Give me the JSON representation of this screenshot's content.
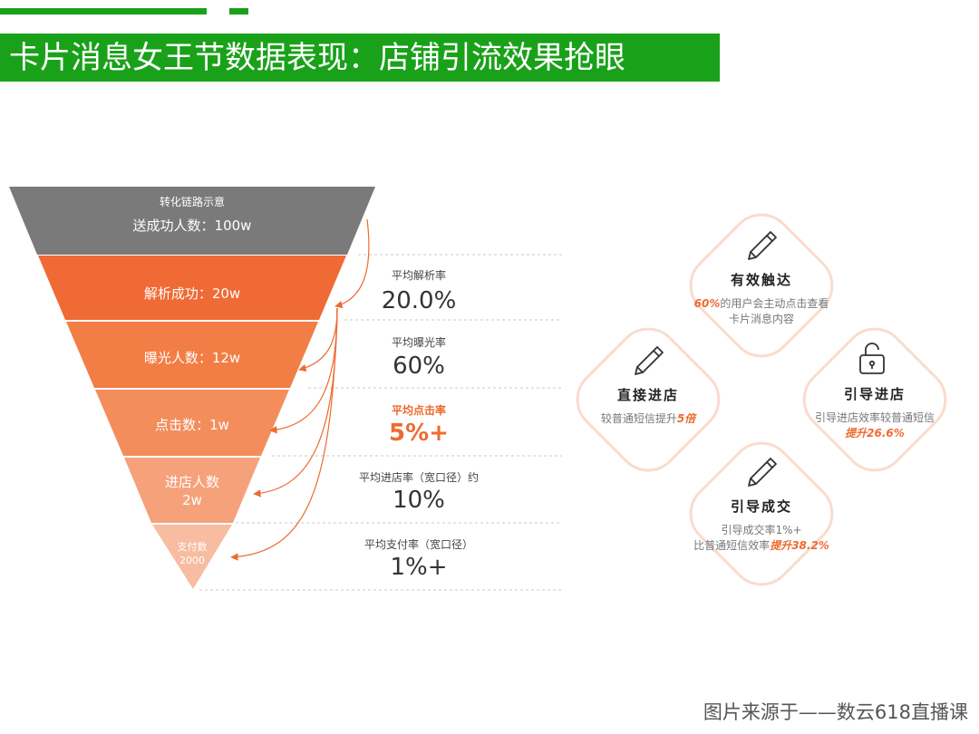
{
  "header": {
    "title": "卡片消息女王节数据表现：店铺引流效果抢眼"
  },
  "funnel": {
    "top_label": "转化链路示意",
    "top_value": "送成功人数：100w",
    "stages": [
      {
        "label": "解析成功：20w",
        "rate_label": "平均解析率",
        "rate_value": "20.0%"
      },
      {
        "label": "曝光人数：12w",
        "rate_label": "平均曝光率",
        "rate_value": "60%"
      },
      {
        "label": "点击数：1w",
        "rate_label": "平均点击率",
        "rate_value": "5%+"
      },
      {
        "label": "进店人数",
        "label2": "2w",
        "rate_label": "平均进店率（宽口径）约",
        "rate_value": "10%"
      },
      {
        "label": "支付数",
        "label2": "2000",
        "rate_label": "平均支付率（宽口径）",
        "rate_value": "1%+"
      }
    ],
    "colors": {
      "top": "#7a7a7a",
      "stages": [
        "#f06a35",
        "#f27d45",
        "#f38e5c",
        "#f5a27b",
        "#f8bca0"
      ],
      "highlight": "#ee6a2f"
    }
  },
  "cards": {
    "effective_reach": {
      "icon": "pencil-icon",
      "title": "有效触达",
      "desc_hl": "60%",
      "desc1": "的用户会主动点击查看",
      "desc2": "卡片消息内容"
    },
    "direct_store": {
      "icon": "pencil-icon",
      "title": "直接进店",
      "desc1": "较普通短信提升",
      "desc_hl": "5倍"
    },
    "guide_store": {
      "icon": "lock-icon",
      "title": "引导进店",
      "desc1": "引导进店效率较普通短信",
      "desc_hl": "提升26.6%"
    },
    "guide_deal": {
      "icon": "pencil-icon",
      "title": "引导成交",
      "desc1": "引导成交率1%+",
      "desc2": "比普通短信效率",
      "desc_hl": "提升38.2%"
    }
  },
  "footer": {
    "source": "图片来源于——数云618直播课"
  }
}
